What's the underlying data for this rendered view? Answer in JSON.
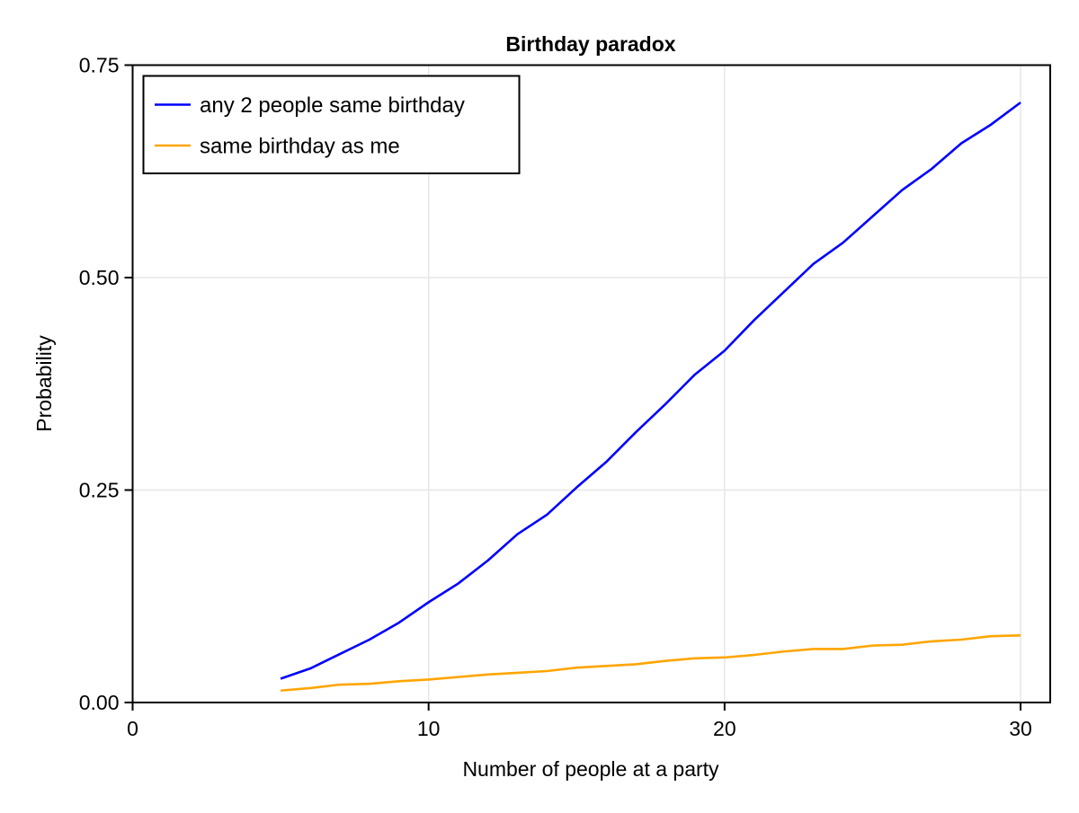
{
  "chart_data": {
    "type": "line",
    "title": "Birthday paradox",
    "xlabel": "Number of people at a party",
    "ylabel": "Probability",
    "xlim": [
      0,
      31
    ],
    "ylim": [
      0,
      0.75
    ],
    "xticks": [
      0,
      10,
      20,
      30
    ],
    "xtick_labels": [
      "0",
      "10",
      "20",
      "30"
    ],
    "yticks": [
      0,
      0.25,
      0.5,
      0.75
    ],
    "ytick_labels": [
      "0.00",
      "0.25",
      "0.50",
      "0.75"
    ],
    "grid": true,
    "legend_position": "top-left",
    "x": [
      5,
      6,
      7,
      8,
      9,
      10,
      11,
      12,
      13,
      14,
      15,
      16,
      17,
      18,
      19,
      20,
      21,
      22,
      23,
      24,
      25,
      26,
      27,
      28,
      29,
      30
    ],
    "series": [
      {
        "name": "any 2 people same birthday",
        "color": "#0000ff",
        "values": [
          0.028,
          0.04,
          0.057,
          0.074,
          0.094,
          0.118,
          0.14,
          0.167,
          0.198,
          0.221,
          0.253,
          0.283,
          0.318,
          0.351,
          0.386,
          0.414,
          0.45,
          0.483,
          0.516,
          0.541,
          0.572,
          0.603,
          0.628,
          0.658,
          0.68,
          0.706
        ]
      },
      {
        "name": "same birthday as me",
        "color": "#ffa500",
        "values": [
          0.014,
          0.017,
          0.021,
          0.022,
          0.025,
          0.027,
          0.03,
          0.033,
          0.035,
          0.037,
          0.041,
          0.043,
          0.045,
          0.049,
          0.052,
          0.053,
          0.056,
          0.06,
          0.063,
          0.063,
          0.067,
          0.068,
          0.072,
          0.074,
          0.078,
          0.079
        ]
      }
    ]
  },
  "colors": {
    "axis": "#000000",
    "grid": "#e6e6e6",
    "background": "#ffffff"
  }
}
